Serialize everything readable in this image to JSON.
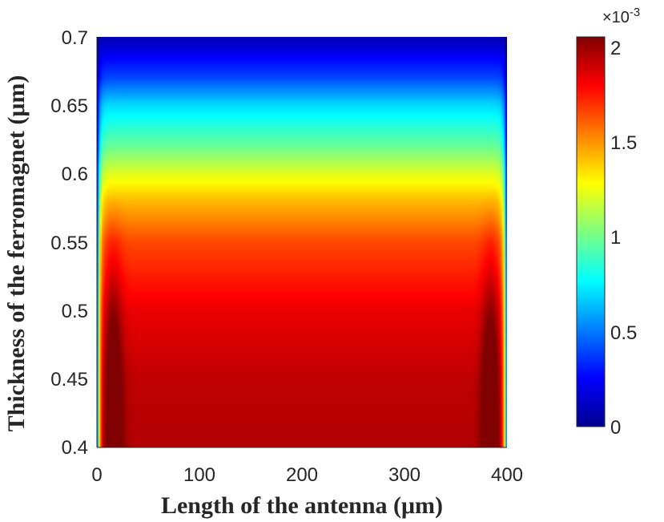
{
  "chart_data": {
    "type": "heatmap",
    "title": "",
    "xlabel": "Length of the antenna (μm)",
    "ylabel": "Thickness of the ferromagnet (μm)",
    "xlim": [
      0,
      400
    ],
    "ylim": [
      0.4,
      0.7
    ],
    "x_ticks": [
      "0",
      "100",
      "200",
      "300",
      "400"
    ],
    "y_ticks": [
      "0.4",
      "0.45",
      "0.5",
      "0.55",
      "0.6",
      "0.65",
      "0.7"
    ],
    "colorbar": {
      "colormap": "jet",
      "range": [
        0,
        0.00205
      ],
      "ticks": [
        "0",
        "0.5",
        "1",
        "1.5",
        "2"
      ],
      "multiplier": "×10-3"
    },
    "center_profile": {
      "thickness": [
        0.4,
        0.45,
        0.5,
        0.55,
        0.58,
        0.6,
        0.62,
        0.65,
        0.67,
        0.7
      ],
      "value": [
        0.00195,
        0.00192,
        0.00183,
        0.00165,
        0.00142,
        0.00122,
        0.00098,
        0.0007,
        0.0004,
        0.0001
      ]
    },
    "edge_peak_x": [
      16,
      384
    ]
  }
}
